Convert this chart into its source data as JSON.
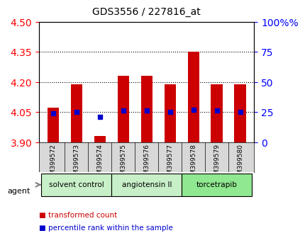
{
  "title": "GDS3556 / 227816_at",
  "samples": [
    "GSM399572",
    "GSM399573",
    "GSM399574",
    "GSM399575",
    "GSM399576",
    "GSM399577",
    "GSM399578",
    "GSM399579",
    "GSM399580"
  ],
  "transformed_counts": [
    4.07,
    4.19,
    3.93,
    4.23,
    4.23,
    4.19,
    4.35,
    4.19,
    4.19
  ],
  "percentile_ranks": [
    24,
    25,
    21,
    26,
    26,
    25,
    27,
    26,
    25
  ],
  "bar_bottom": 3.9,
  "ylim_left": [
    3.9,
    4.5
  ],
  "ylim_right": [
    0,
    100
  ],
  "yticks_left": [
    3.9,
    4.05,
    4.2,
    4.35,
    4.5
  ],
  "yticks_right": [
    0,
    25,
    50,
    75,
    100
  ],
  "groups": [
    {
      "label": "solvent control",
      "indices": [
        0,
        1,
        2
      ],
      "color": "#c8f0c8"
    },
    {
      "label": "angiotensin II",
      "indices": [
        3,
        4,
        5
      ],
      "color": "#c8f0c8"
    },
    {
      "label": "torcetrapib",
      "indices": [
        6,
        7,
        8
      ],
      "color": "#90e890"
    }
  ],
  "bar_color": "#cc0000",
  "dot_color": "#0000cc",
  "bar_width": 0.5,
  "agent_label": "agent",
  "legend_items": [
    "transformed count",
    "percentile rank within the sample"
  ],
  "legend_colors": [
    "#cc0000",
    "#0000cc"
  ]
}
